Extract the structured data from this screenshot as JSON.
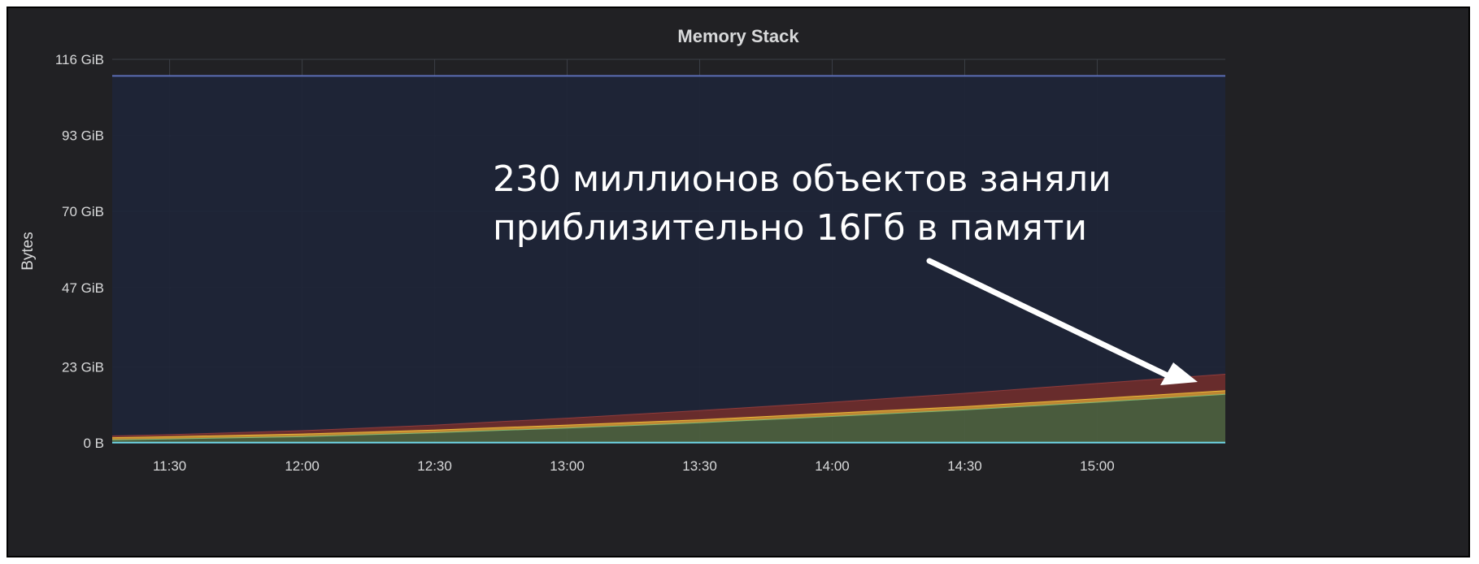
{
  "chart_data": {
    "type": "area",
    "title": "Memory Stack",
    "ylabel": "Bytes",
    "xlabel": "",
    "stacked": true,
    "grid": true,
    "y_ticks": [
      "0 B",
      "23 GiB",
      "47 GiB",
      "70 GiB",
      "93 GiB",
      "116 GiB"
    ],
    "y_tick_values_gib": [
      0,
      23,
      47,
      70,
      93,
      116
    ],
    "ylim_gib": [
      0,
      116
    ],
    "x_ticks": [
      "11:30",
      "12:00",
      "12:30",
      "13:00",
      "13:30",
      "14:00",
      "14:30",
      "15:00"
    ],
    "x_range": [
      "11:17",
      "15:29"
    ],
    "x": [
      "11:17",
      "11:30",
      "12:00",
      "12:30",
      "13:00",
      "13:30",
      "14:00",
      "14:30",
      "15:00",
      "15:29"
    ],
    "series": [
      {
        "color": "#4c5f3f",
        "line_color": "#7eb26d",
        "values": [
          1.0,
          1.3,
          2.0,
          3.2,
          4.6,
          6.2,
          8.1,
          10.1,
          12.4,
          14.8
        ]
      },
      {
        "color": "#c58b34",
        "line_color": "#eab839",
        "values": [
          0.7,
          0.7,
          0.8,
          0.8,
          0.9,
          0.9,
          1.0,
          1.0,
          1.1,
          1.1
        ]
      },
      {
        "color": "#6d2d2d",
        "line_color": "#8f3b3b",
        "values": [
          0.5,
          0.6,
          1.0,
          1.5,
          2.1,
          2.8,
          3.3,
          4.0,
          4.6,
          5.0
        ]
      },
      {
        "color": "#1f2538",
        "line_color": "#5b6db5",
        "values": [
          108.8,
          108.4,
          107.2,
          105.5,
          103.4,
          101.1,
          98.6,
          95.9,
          92.9,
          90.1
        ]
      }
    ],
    "bottom_line": {
      "line_color": "#70dbed",
      "value": 0.1
    },
    "annotation": {
      "lines": [
        "230 миллионов объектов заняли",
        "приблизительно 16Гб в памяти"
      ],
      "arrow": true
    }
  }
}
